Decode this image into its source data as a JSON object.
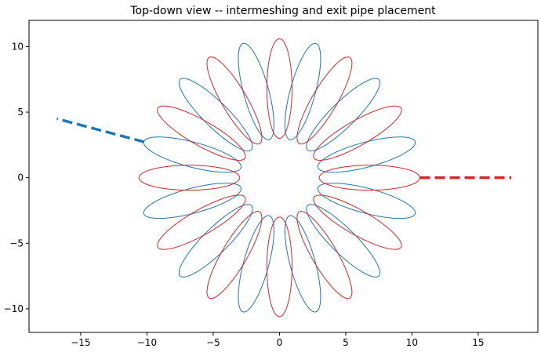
{
  "chart_data": {
    "type": "line",
    "title": "Top-down view -- intermeshing and exit pipe placement",
    "xlabel": "",
    "ylabel": "",
    "xlim": [
      -18.9,
      19.5
    ],
    "ylim": [
      -11.8,
      12.0
    ],
    "xticks": [
      -15,
      -10,
      -5,
      0,
      5,
      10,
      15
    ],
    "yticks": [
      -10,
      -5,
      0,
      5,
      10
    ],
    "xtick_labels": [
      "−15",
      "−10",
      "−5",
      "0",
      "5",
      "10",
      "15"
    ],
    "ytick_labels": [
      "−10",
      "−5",
      "0",
      "5",
      "10"
    ],
    "grid": false,
    "series": [
      {
        "kind": "petals",
        "color": "#d62728",
        "petal_count": 12,
        "rotation_deg": 0,
        "inner_radius": 3.0,
        "outer_radius": 10.6,
        "half_width": 0.95
      },
      {
        "kind": "petals",
        "color": "#1f77b4",
        "petal_count": 12,
        "rotation_deg": 15,
        "inner_radius": 3.0,
        "outer_radius": 10.6,
        "half_width": 0.95
      },
      {
        "kind": "exit-pipe",
        "color": "#d62728",
        "x": [
          10.6,
          17.5
        ],
        "y": [
          0.0,
          0.0
        ]
      },
      {
        "kind": "exit-pipe",
        "color": "#1f77b4",
        "x": [
          -10.2,
          -16.8
        ],
        "y": [
          2.73,
          4.5
        ]
      }
    ]
  }
}
